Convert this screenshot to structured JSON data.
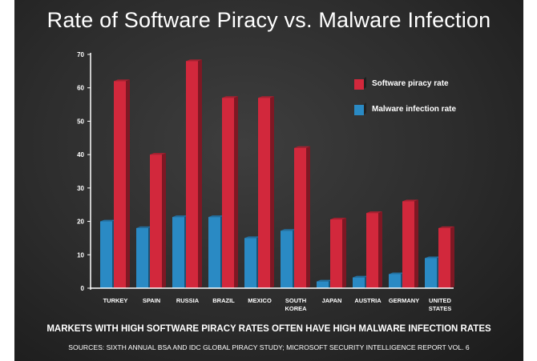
{
  "chart_data": {
    "type": "bar",
    "title": "Rate of Software Piracy vs. Malware Infection",
    "categories": [
      "TURKEY",
      "SPAIN",
      "RUSSIA",
      "BRAZIL",
      "MEXICO",
      "SOUTH KOREA",
      "JAPAN",
      "AUSTRIA",
      "GERMANY",
      "UNITED STATES"
    ],
    "series": [
      {
        "name": "Malware infection rate",
        "color": "#2a8ac4",
        "values": [
          20,
          18,
          21.3,
          21.3,
          15,
          17.2,
          2,
          3.2,
          4.2,
          9
        ]
      },
      {
        "name": "Software piracy rate",
        "color": "#d2283c",
        "values": [
          62,
          40,
          68,
          57,
          57,
          42,
          20.6,
          22.5,
          26,
          18
        ]
      }
    ],
    "yticks": [
      0,
      10,
      20,
      30,
      40,
      50,
      60,
      70
    ],
    "ylim": [
      0,
      70
    ],
    "xlabel": "",
    "ylabel": "",
    "grid": false,
    "legend_position": "top-right",
    "caption": "MARKETS WITH HIGH SOFTWARE PIRACY RATES OFTEN HAVE HIGH MALWARE INFECTION RATES",
    "sources": "SOURCES: SIXTH ANNUAL BSA AND IDC GLOBAL PIRACY STUDY; MICROSOFT SECURITY INTELLIGENCE REPORT VOL. 6"
  }
}
